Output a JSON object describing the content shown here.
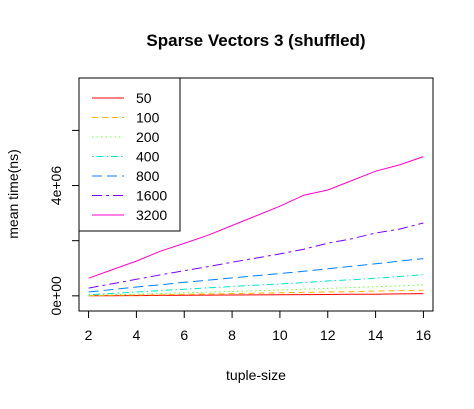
{
  "chart_data": {
    "type": "line",
    "title": "Sparse Vectors 3 (shuffled)",
    "xlabel": "tuple-size",
    "ylabel": "mean time(ns)",
    "x": [
      2,
      3,
      4,
      5,
      6,
      7,
      8,
      9,
      10,
      11,
      12,
      13,
      14,
      15,
      16
    ],
    "xticks": [
      2,
      4,
      6,
      8,
      10,
      12,
      14,
      16
    ],
    "xtick_labels": [
      "2",
      "4",
      "6",
      "8",
      "10",
      "12",
      "14",
      "16"
    ],
    "yticks": [
      0,
      4000000
    ],
    "ytick_labels": [
      "0e+00",
      "4e+06"
    ],
    "xlim": [
      1.6,
      16.4
    ],
    "ylim": [
      -550000,
      7900000
    ],
    "grid": false,
    "legend_position": "top-left",
    "series": [
      {
        "name": "50",
        "color": "#FF0000",
        "dash": "solid",
        "values": [
          0,
          5000,
          10000,
          15000,
          20000,
          25000,
          30000,
          35000,
          40000,
          45000,
          50000,
          55000,
          60000,
          70000,
          80000
        ]
      },
      {
        "name": "100",
        "color": "#FFB000",
        "dash": "6,4",
        "values": [
          10000,
          20000,
          30000,
          40000,
          55000,
          70000,
          80000,
          95000,
          110000,
          125000,
          140000,
          150000,
          170000,
          190000,
          200000
        ]
      },
      {
        "name": "200",
        "color": "#66FF33",
        "dash": "1.5,3",
        "values": [
          20000,
          40000,
          60000,
          85000,
          110000,
          135000,
          160000,
          185000,
          210000,
          240000,
          270000,
          300000,
          330000,
          360000,
          400000
        ]
      },
      {
        "name": "400",
        "color": "#00E6CC",
        "dash": "1.5,3,7,3",
        "values": [
          40000,
          90000,
          140000,
          190000,
          240000,
          290000,
          340000,
          390000,
          430000,
          480000,
          540000,
          580000,
          640000,
          700000,
          770000
        ]
      },
      {
        "name": "800",
        "color": "#0080FF",
        "dash": "10,5",
        "values": [
          140000,
          230000,
          320000,
          400000,
          490000,
          570000,
          650000,
          730000,
          810000,
          890000,
          980000,
          1070000,
          1160000,
          1260000,
          1350000
        ]
      },
      {
        "name": "1600",
        "color": "#8000FF",
        "dash": "10,4,3,4",
        "values": [
          280000,
          440000,
          600000,
          760000,
          910000,
          1060000,
          1220000,
          1370000,
          1520000,
          1690000,
          1910000,
          2070000,
          2280000,
          2420000,
          2640000
        ]
      },
      {
        "name": "3200",
        "color": "#FF00CC",
        "dash": "solid",
        "values": [
          640000,
          950000,
          1260000,
          1620000,
          1900000,
          2200000,
          2550000,
          2900000,
          3250000,
          3650000,
          3840000,
          4180000,
          4520000,
          4750000,
          5050000
        ]
      }
    ]
  }
}
